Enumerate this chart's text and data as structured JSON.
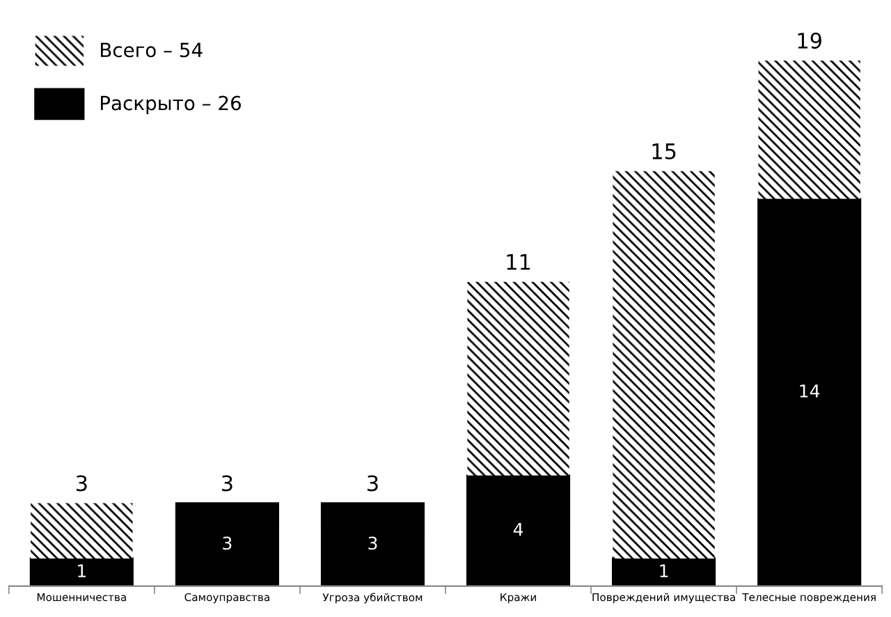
{
  "chart_data": {
    "type": "bar",
    "stacked": true,
    "categories": [
      "Мошенничества",
      "Самоуправства",
      "Угроза убийством",
      "Кражи",
      "Повреждений имущества",
      "Телесные повреждения"
    ],
    "series": [
      {
        "name": "Раскрыто – 26",
        "color": "#000000",
        "values": [
          1,
          3,
          3,
          4,
          1,
          14
        ],
        "value_labels": [
          "1",
          "3",
          "3",
          "4",
          "1",
          "14"
        ]
      },
      {
        "name": "Всего – 54",
        "color": "#000000",
        "values": [
          2,
          0,
          0,
          7,
          14,
          5
        ]
      }
    ],
    "totals": [
      "3",
      "3",
      "3",
      "11",
      "15",
      "19"
    ],
    "legend": "top left",
    "grid": false,
    "tick_labels": "x"
  }
}
